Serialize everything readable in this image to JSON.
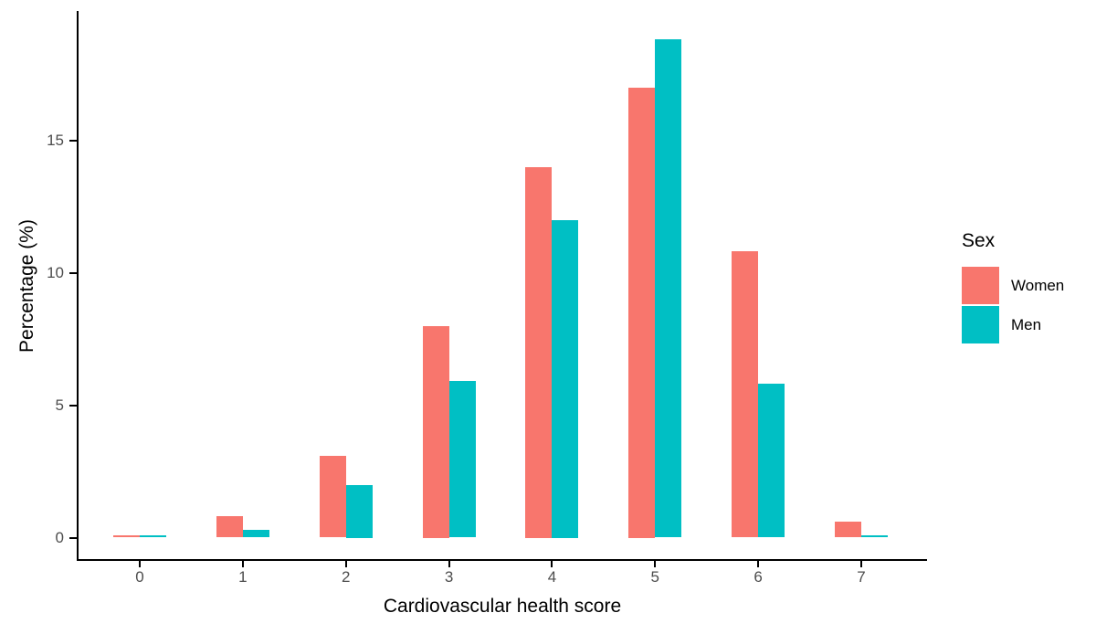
{
  "chart_data": {
    "type": "bar",
    "title": "",
    "xlabel": "Cardiovascular health score",
    "ylabel": "Percentage (%)",
    "categories": [
      "0",
      "1",
      "2",
      "3",
      "4",
      "5",
      "6",
      "7"
    ],
    "series": [
      {
        "name": "Women",
        "color": "#F8766D",
        "values": [
          0.1,
          0.8,
          3.1,
          8.0,
          14.0,
          17.0,
          10.8,
          0.6
        ]
      },
      {
        "name": "Men",
        "color": "#00BFC4",
        "values": [
          0.1,
          0.3,
          2.0,
          5.9,
          12.0,
          18.8,
          5.8,
          0.1
        ]
      }
    ],
    "y_tick_labels": [
      "0",
      "5",
      "10",
      "15"
    ],
    "y_tick_values": [
      0,
      5,
      10,
      15
    ],
    "ylim": [
      0,
      19.8
    ],
    "grid": false,
    "bar_layout": "dodged",
    "legend": {
      "title": "Sex",
      "position": "right"
    },
    "axis_color": "#000000",
    "tick_label_color": "#4D4D4D",
    "background_color": "#FFFFFF"
  }
}
